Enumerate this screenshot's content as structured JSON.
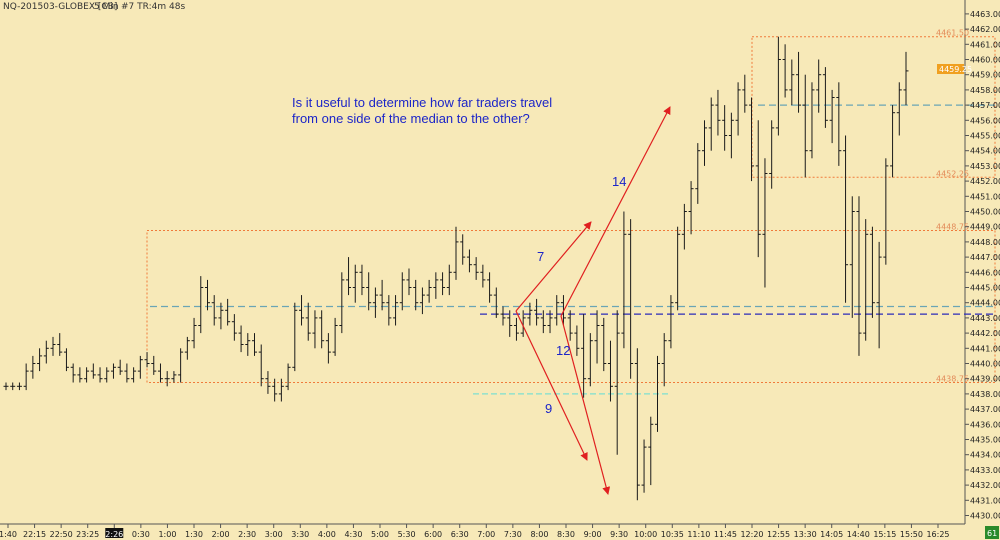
{
  "header": {
    "instrument": "NQ-201503-GLOBEX [CB]",
    "interval": "5 Min",
    "meta": "#7 TR:4m 48s"
  },
  "colors": {
    "background": "#f7e9b8",
    "bar": "#1a1a1a",
    "range_box": "#f07a3a",
    "median_blue": "#2b2bb8",
    "median_teal": "#6aa5b5",
    "low_cyan": "#7fe0d0",
    "arrow": "#e02020",
    "annotation_text": "#1c25c8",
    "price_marker": "#f0a020",
    "corner_badge": "#2a8a2a"
  },
  "annotation": {
    "line1": "Is it useful to determine how far traders travel",
    "line2": "from one side of the median to the other?"
  },
  "counts": {
    "seven": "7",
    "nine": "9",
    "twelve": "12",
    "fourteen": "14"
  },
  "current_price": "4459.25",
  "corner_badge": "61",
  "chart_data": {
    "type": "candlestick",
    "title": "",
    "xlabel": "",
    "ylabel": "",
    "ylim": [
      4429.5,
      4463.5
    ],
    "y_ticks": [
      "4430.00",
      "4431.00",
      "4432.00",
      "4433.00",
      "4434.00",
      "4435.00",
      "4436.00",
      "4437.00",
      "4438.00",
      "4439.00",
      "4440.00",
      "4441.00",
      "4442.00",
      "4443.00",
      "4444.00",
      "4445.00",
      "4446.00",
      "4447.00",
      "4448.00",
      "4449.00",
      "4450.00",
      "4451.00",
      "4452.00",
      "4453.00",
      "4454.00",
      "4455.00",
      "4456.00",
      "4457.00",
      "4458.00",
      "4459.00",
      "4460.00",
      "4461.00",
      "4462.00",
      "4463.00"
    ],
    "x_ticks": [
      "1:40",
      "22:15",
      "22:50",
      "23:25",
      "2:26",
      "0:30",
      "1:00",
      "1:30",
      "2:00",
      "2:30",
      "3:00",
      "3:30",
      "4:00",
      "4:30",
      "5:00",
      "5:30",
      "6:00",
      "6:30",
      "7:00",
      "7:30",
      "8:00",
      "8:30",
      "9:00",
      "9:30",
      "10:00",
      "10:35",
      "11:10",
      "11:45",
      "12:20",
      "12:55",
      "13:30",
      "14:05",
      "14:40",
      "15:15",
      "15:50",
      "16:25"
    ],
    "highlighted_x_tick": "2:26",
    "levels": [
      {
        "name": "upper box high",
        "value": 4461.5,
        "label": "4461.50"
      },
      {
        "name": "upper box low",
        "value": 4452.25,
        "label": "4452.25"
      },
      {
        "name": "lower box high",
        "value": 4448.75,
        "label": "4448.75"
      },
      {
        "name": "lower box low",
        "value": 4438.75,
        "label": "4438.75"
      },
      {
        "name": "upper median",
        "value": 4457.0
      },
      {
        "name": "median teal",
        "value": 4443.75
      },
      {
        "name": "median blue",
        "value": 4443.25
      },
      {
        "name": "low level",
        "value": 4438.0
      }
    ],
    "ohlc_approx": [
      [
        4438.5,
        4438.75,
        4438.25,
        4438.5
      ],
      [
        4438.5,
        4438.75,
        4438.25,
        4438.5
      ],
      [
        4438.5,
        4438.75,
        4438.25,
        4438.5
      ],
      [
        4438.5,
        4440.0,
        4438.25,
        4439.5
      ],
      [
        4439.5,
        4440.5,
        4439.0,
        4440.0
      ],
      [
        4440.0,
        4441.0,
        4439.5,
        4440.5
      ],
      [
        4440.5,
        4441.5,
        4440.0,
        4441.0
      ],
      [
        4441.0,
        4441.75,
        4440.5,
        4441.25
      ],
      [
        4441.25,
        4442.0,
        4440.5,
        4440.75
      ],
      [
        4440.75,
        4441.0,
        4439.5,
        4439.75
      ],
      [
        4439.75,
        4440.0,
        4438.75,
        4439.25
      ],
      [
        4439.25,
        4439.75,
        4438.75,
        4439.0
      ],
      [
        4439.0,
        4439.75,
        4438.75,
        4439.5
      ],
      [
        4439.5,
        4440.0,
        4439.0,
        4439.25
      ],
      [
        4439.25,
        4439.75,
        4438.75,
        4439.0
      ],
      [
        4439.0,
        4439.75,
        4438.75,
        4439.5
      ],
      [
        4439.5,
        4440.0,
        4439.0,
        4439.75
      ],
      [
        4439.75,
        4440.25,
        4439.25,
        4439.5
      ],
      [
        4439.5,
        4440.0,
        4438.75,
        4439.0
      ],
      [
        4439.0,
        4439.75,
        4438.75,
        4439.5
      ],
      [
        4439.5,
        4440.5,
        4439.0,
        4440.25
      ],
      [
        4440.25,
        4440.75,
        4439.75,
        4440.0
      ],
      [
        4440.0,
        4440.5,
        4439.25,
        4439.5
      ],
      [
        4439.5,
        4440.0,
        4438.75,
        4439.0
      ],
      [
        4439.0,
        4439.5,
        4438.5,
        4439.0
      ],
      [
        4439.0,
        4439.5,
        4438.75,
        4439.25
      ],
      [
        4439.25,
        4441.0,
        4438.75,
        4440.75
      ],
      [
        4440.75,
        4441.75,
        4440.25,
        4441.5
      ],
      [
        4441.5,
        4443.0,
        4441.0,
        4442.5
      ],
      [
        4442.5,
        4445.75,
        4442.0,
        4445.0
      ],
      [
        4445.0,
        4445.5,
        4443.5,
        4444.0
      ],
      [
        4444.0,
        4444.5,
        4442.5,
        4443.0
      ],
      [
        4443.0,
        4444.0,
        4442.25,
        4443.5
      ],
      [
        4443.5,
        4444.25,
        4442.5,
        4442.75
      ],
      [
        4442.75,
        4443.25,
        4441.5,
        4442.0
      ],
      [
        4442.0,
        4442.5,
        4440.75,
        4441.25
      ],
      [
        4441.25,
        4442.0,
        4440.5,
        4441.5
      ],
      [
        4441.5,
        4442.0,
        4440.5,
        4440.75
      ],
      [
        4440.75,
        4441.25,
        4438.5,
        4439.0
      ],
      [
        4439.0,
        4439.5,
        4438.0,
        4438.5
      ],
      [
        4438.5,
        4439.0,
        4437.5,
        4438.0
      ],
      [
        4438.0,
        4439.0,
        4437.5,
        4438.5
      ],
      [
        4438.5,
        4440.0,
        4438.25,
        4439.75
      ],
      [
        4439.75,
        4444.0,
        4439.5,
        4443.5
      ],
      [
        4443.5,
        4444.5,
        4442.5,
        4443.0
      ],
      [
        4443.0,
        4444.0,
        4441.5,
        4442.0
      ],
      [
        4442.0,
        4443.5,
        4441.0,
        4443.0
      ],
      [
        4443.0,
        4443.5,
        4441.0,
        4441.5
      ],
      [
        4441.5,
        4442.0,
        4440.0,
        4440.75
      ],
      [
        4440.75,
        4443.0,
        4440.5,
        4442.5
      ],
      [
        4442.5,
        4446.0,
        4442.0,
        4445.5
      ],
      [
        4445.5,
        4447.0,
        4444.5,
        4445.0
      ],
      [
        4445.0,
        4446.5,
        4444.0,
        4446.0
      ],
      [
        4446.0,
        4446.5,
        4444.5,
        4445.0
      ],
      [
        4445.0,
        4446.0,
        4443.5,
        4444.0
      ],
      [
        4444.0,
        4445.0,
        4443.0,
        4444.5
      ],
      [
        4444.5,
        4445.5,
        4443.5,
        4444.0
      ],
      [
        4444.0,
        4444.5,
        4442.5,
        4443.0
      ],
      [
        4443.0,
        4444.5,
        4442.5,
        4444.0
      ],
      [
        4444.0,
        4446.0,
        4443.5,
        4445.5
      ],
      [
        4445.5,
        4446.25,
        4444.5,
        4445.0
      ],
      [
        4445.0,
        4445.5,
        4443.5,
        4444.0
      ],
      [
        4444.0,
        4445.0,
        4443.25,
        4444.5
      ],
      [
        4444.5,
        4445.5,
        4444.0,
        4445.0
      ],
      [
        4445.0,
        4446.0,
        4444.25,
        4445.5
      ],
      [
        4445.5,
        4446.0,
        4444.5,
        4445.0
      ],
      [
        4445.0,
        4446.5,
        4444.5,
        4446.0
      ],
      [
        4446.0,
        4449.0,
        4445.5,
        4448.0
      ],
      [
        4448.0,
        4448.5,
        4446.5,
        4447.0
      ],
      [
        4447.0,
        4447.5,
        4446.0,
        4446.5
      ],
      [
        4446.5,
        4447.0,
        4445.5,
        4446.0
      ],
      [
        4446.0,
        4446.5,
        4445.0,
        4445.5
      ],
      [
        4445.5,
        4446.0,
        4444.0,
        4444.5
      ],
      [
        4444.5,
        4445.0,
        4443.0,
        4443.25
      ],
      [
        4443.25,
        4443.75,
        4442.5,
        4443.0
      ],
      [
        4443.0,
        4443.5,
        4441.75,
        4442.5
      ],
      [
        4442.5,
        4443.0,
        4441.5,
        4442.0
      ],
      [
        4442.0,
        4443.5,
        4441.75,
        4443.0
      ],
      [
        4443.0,
        4444.0,
        4442.5,
        4443.5
      ],
      [
        4443.5,
        4444.25,
        4442.5,
        4443.0
      ],
      [
        4443.0,
        4443.5,
        4442.0,
        4442.5
      ],
      [
        4442.5,
        4443.5,
        4442.0,
        4443.0
      ],
      [
        4443.0,
        4444.5,
        4442.5,
        4444.0
      ],
      [
        4444.0,
        4444.5,
        4442.5,
        4443.0
      ],
      [
        4443.0,
        4443.5,
        4441.5,
        4442.0
      ],
      [
        4442.0,
        4442.5,
        4440.5,
        4441.0
      ],
      [
        4441.0,
        4443.25,
        4437.75,
        4439.0
      ],
      [
        4439.0,
        4442.0,
        4438.5,
        4441.5
      ],
      [
        4441.5,
        4443.5,
        4440.0,
        4442.5
      ],
      [
        4442.5,
        4443.0,
        4439.5,
        4440.0
      ],
      [
        4440.0,
        4441.5,
        4437.5,
        4438.5
      ],
      [
        4438.5,
        4443.5,
        4434.0,
        4442.0
      ],
      [
        4442.0,
        4450.0,
        4441.0,
        4448.5
      ],
      [
        4448.5,
        4449.5,
        4439.0,
        4440.0
      ],
      [
        4440.0,
        4441.0,
        4431.0,
        4432.0
      ],
      [
        4432.0,
        4435.0,
        4431.5,
        4434.5
      ],
      [
        4434.5,
        4436.5,
        4432.0,
        4436.0
      ],
      [
        4436.0,
        4440.5,
        4435.5,
        4440.0
      ],
      [
        4440.0,
        4442.0,
        4438.5,
        4441.5
      ],
      [
        4441.5,
        4444.5,
        4441.0,
        4444.0
      ],
      [
        4444.0,
        4449.0,
        4443.5,
        4448.5
      ],
      [
        4448.5,
        4450.5,
        4447.5,
        4450.0
      ],
      [
        4450.0,
        4452.0,
        4448.5,
        4451.5
      ],
      [
        4451.5,
        4454.5,
        4450.5,
        4454.0
      ],
      [
        4454.0,
        4456.0,
        4453.0,
        4455.5
      ],
      [
        4455.5,
        4457.5,
        4454.0,
        4457.0
      ],
      [
        4457.0,
        4458.0,
        4455.0,
        4456.0
      ],
      [
        4456.0,
        4457.0,
        4454.0,
        4455.0
      ],
      [
        4455.0,
        4456.5,
        4453.5,
        4456.0
      ],
      [
        4456.0,
        4458.5,
        4455.0,
        4458.0
      ],
      [
        4458.0,
        4459.0,
        4456.5,
        4457.0
      ],
      [
        4457.0,
        4457.5,
        4452.0,
        4453.0
      ],
      [
        4453.0,
        4456.0,
        4447.0,
        4448.5
      ],
      [
        4448.5,
        4453.5,
        4445.0,
        4452.5
      ],
      [
        4452.5,
        4456.0,
        4451.5,
        4455.5
      ],
      [
        4455.5,
        4461.5,
        4455.0,
        4460.0
      ],
      [
        4460.0,
        4461.0,
        4457.5,
        4458.0
      ],
      [
        4458.0,
        4460.0,
        4457.0,
        4459.0
      ],
      [
        4459.0,
        4460.5,
        4456.5,
        4457.0
      ],
      [
        4457.0,
        4459.0,
        4452.25,
        4454.0
      ],
      [
        4454.0,
        4458.5,
        4453.5,
        4458.0
      ],
      [
        4458.0,
        4460.0,
        4456.5,
        4459.0
      ],
      [
        4459.0,
        4459.5,
        4455.5,
        4456.0
      ],
      [
        4456.0,
        4458.0,
        4454.5,
        4457.5
      ],
      [
        4457.5,
        4458.5,
        4453.0,
        4454.0
      ],
      [
        4454.0,
        4455.0,
        4444.0,
        4446.5
      ],
      [
        4446.5,
        4451.0,
        4443.0,
        4450.0
      ],
      [
        4450.0,
        4451.0,
        4440.5,
        4442.0
      ],
      [
        4442.0,
        4449.5,
        4441.5,
        4448.5
      ],
      [
        4448.5,
        4449.0,
        4443.0,
        4444.0
      ],
      [
        4444.0,
        4448.0,
        4441.0,
        4447.0
      ],
      [
        4447.0,
        4453.5,
        4446.5,
        4453.0
      ],
      [
        4453.0,
        4457.0,
        4452.25,
        4456.5
      ],
      [
        4456.5,
        4458.5,
        4455.0,
        4458.0
      ],
      [
        4458.0,
        4460.5,
        4457.0,
        4459.25
      ]
    ]
  }
}
